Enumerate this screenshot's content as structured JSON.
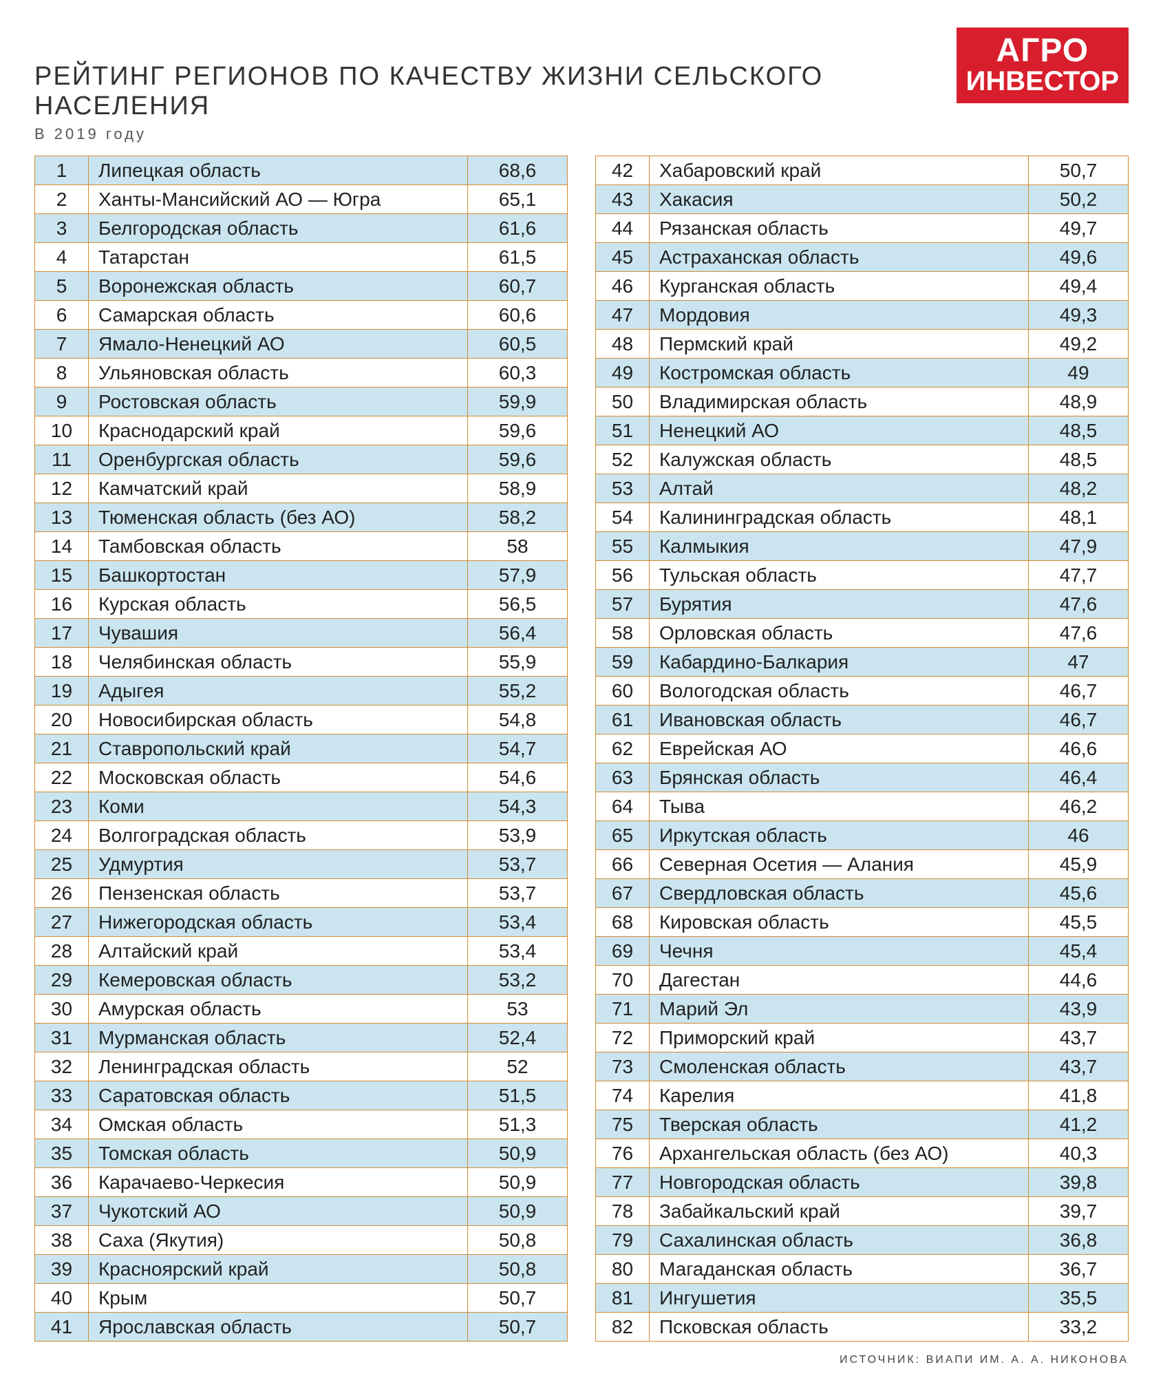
{
  "header": {
    "title": "РЕЙТИНГ РЕГИОНОВ ПО КАЧЕСТВУ ЖИЗНИ СЕЛЬСКОГО НАСЕЛЕНИЯ",
    "subtitle": "В 2019 году",
    "logo_line1": "АГРО",
    "logo_line2": "ИНВЕСТОР"
  },
  "source": "ИСТОЧНИК: ВИАПИ ИМ. А. А. НИКОНОВА",
  "style": {
    "row_odd_bg": "#cae5f0",
    "row_even_bg": "#ffffff",
    "border_color": "#d38b2f",
    "logo_bg": "#d81e2c",
    "logo_fg": "#ffffff",
    "font_size_cell": 28,
    "font_size_title": 38,
    "font_size_subtitle": 22
  },
  "rows": [
    {
      "rank": "1",
      "region": "Липецкая область",
      "value": "68,6"
    },
    {
      "rank": "2",
      "region": "Ханты-Мансийский АО — Югра",
      "value": "65,1"
    },
    {
      "rank": "3",
      "region": "Белгородская область",
      "value": "61,6"
    },
    {
      "rank": "4",
      "region": "Татарстан",
      "value": "61,5"
    },
    {
      "rank": "5",
      "region": "Воронежская область",
      "value": "60,7"
    },
    {
      "rank": "6",
      "region": "Самарская область",
      "value": "60,6"
    },
    {
      "rank": "7",
      "region": "Ямало-Ненецкий АО",
      "value": "60,5"
    },
    {
      "rank": "8",
      "region": "Ульяновская область",
      "value": "60,3"
    },
    {
      "rank": "9",
      "region": "Ростовская область",
      "value": "59,9"
    },
    {
      "rank": "10",
      "region": "Краснодарский край",
      "value": "59,6"
    },
    {
      "rank": "11",
      "region": "Оренбургская область",
      "value": "59,6"
    },
    {
      "rank": "12",
      "region": "Камчатский край",
      "value": "58,9"
    },
    {
      "rank": "13",
      "region": "Тюменская область (без АО)",
      "value": "58,2"
    },
    {
      "rank": "14",
      "region": "Тамбовская область",
      "value": "58"
    },
    {
      "rank": "15",
      "region": "Башкортостан",
      "value": "57,9"
    },
    {
      "rank": "16",
      "region": "Курская область",
      "value": "56,5"
    },
    {
      "rank": "17",
      "region": "Чувашия",
      "value": "56,4"
    },
    {
      "rank": "18",
      "region": "Челябинская область",
      "value": "55,9"
    },
    {
      "rank": "19",
      "region": "Адыгея",
      "value": "55,2"
    },
    {
      "rank": "20",
      "region": "Новосибирская область",
      "value": "54,8"
    },
    {
      "rank": "21",
      "region": "Ставропольский край",
      "value": "54,7"
    },
    {
      "rank": "22",
      "region": "Московская область",
      "value": "54,6"
    },
    {
      "rank": "23",
      "region": "Коми",
      "value": "54,3"
    },
    {
      "rank": "24",
      "region": "Волгоградская область",
      "value": "53,9"
    },
    {
      "rank": "25",
      "region": "Удмуртия",
      "value": "53,7"
    },
    {
      "rank": "26",
      "region": "Пензенская область",
      "value": "53,7"
    },
    {
      "rank": "27",
      "region": "Нижегородская область",
      "value": "53,4"
    },
    {
      "rank": "28",
      "region": "Алтайский край",
      "value": "53,4"
    },
    {
      "rank": "29",
      "region": "Кемеровская область",
      "value": "53,2"
    },
    {
      "rank": "30",
      "region": "Амурская область",
      "value": "53"
    },
    {
      "rank": "31",
      "region": "Мурманская область",
      "value": "52,4"
    },
    {
      "rank": "32",
      "region": "Ленинградская область",
      "value": "52"
    },
    {
      "rank": "33",
      "region": "Саратовская область",
      "value": "51,5"
    },
    {
      "rank": "34",
      "region": "Омская область",
      "value": "51,3"
    },
    {
      "rank": "35",
      "region": "Томская область",
      "value": "50,9"
    },
    {
      "rank": "36",
      "region": "Карачаево-Черкесия",
      "value": "50,9"
    },
    {
      "rank": "37",
      "region": "Чукотский АО",
      "value": "50,9"
    },
    {
      "rank": "38",
      "region": "Саха (Якутия)",
      "value": "50,8"
    },
    {
      "rank": "39",
      "region": "Красноярский край",
      "value": "50,8"
    },
    {
      "rank": "40",
      "region": "Крым",
      "value": "50,7"
    },
    {
      "rank": "41",
      "region": "Ярославская область",
      "value": "50,7"
    },
    {
      "rank": "42",
      "region": "Хабаровский край",
      "value": "50,7"
    },
    {
      "rank": "43",
      "region": "Хакасия",
      "value": "50,2"
    },
    {
      "rank": "44",
      "region": "Рязанская область",
      "value": "49,7"
    },
    {
      "rank": "45",
      "region": "Астраханская область",
      "value": "49,6"
    },
    {
      "rank": "46",
      "region": "Курганская область",
      "value": "49,4"
    },
    {
      "rank": "47",
      "region": "Мордовия",
      "value": "49,3"
    },
    {
      "rank": "48",
      "region": "Пермский край",
      "value": "49,2"
    },
    {
      "rank": "49",
      "region": "Костромская область",
      "value": "49"
    },
    {
      "rank": "50",
      "region": "Владимирская область",
      "value": "48,9"
    },
    {
      "rank": "51",
      "region": "Ненецкий АО",
      "value": "48,5"
    },
    {
      "rank": "52",
      "region": "Калужская область",
      "value": "48,5"
    },
    {
      "rank": "53",
      "region": "Алтай",
      "value": "48,2"
    },
    {
      "rank": "54",
      "region": "Калининградская область",
      "value": "48,1"
    },
    {
      "rank": "55",
      "region": "Калмыкия",
      "value": "47,9"
    },
    {
      "rank": "56",
      "region": "Тульская область",
      "value": "47,7"
    },
    {
      "rank": "57",
      "region": "Бурятия",
      "value": "47,6"
    },
    {
      "rank": "58",
      "region": "Орловская область",
      "value": "47,6"
    },
    {
      "rank": "59",
      "region": "Кабардино-Балкария",
      "value": "47"
    },
    {
      "rank": "60",
      "region": "Вологодская область",
      "value": "46,7"
    },
    {
      "rank": "61",
      "region": "Ивановская область",
      "value": "46,7"
    },
    {
      "rank": "62",
      "region": "Еврейская АО",
      "value": "46,6"
    },
    {
      "rank": "63",
      "region": "Брянская область",
      "value": "46,4"
    },
    {
      "rank": "64",
      "region": "Тыва",
      "value": "46,2"
    },
    {
      "rank": "65",
      "region": "Иркутская область",
      "value": "46"
    },
    {
      "rank": "66",
      "region": "Северная Осетия — Алания",
      "value": "45,9"
    },
    {
      "rank": "67",
      "region": "Свердловская область",
      "value": "45,6"
    },
    {
      "rank": "68",
      "region": "Кировская область",
      "value": "45,5"
    },
    {
      "rank": "69",
      "region": "Чечня",
      "value": "45,4"
    },
    {
      "rank": "70",
      "region": "Дагестан",
      "value": "44,6"
    },
    {
      "rank": "71",
      "region": "Марий Эл",
      "value": "43,9"
    },
    {
      "rank": "72",
      "region": "Приморский край",
      "value": "43,7"
    },
    {
      "rank": "73",
      "region": "Смоленская область",
      "value": "43,7"
    },
    {
      "rank": "74",
      "region": "Карелия",
      "value": "41,8"
    },
    {
      "rank": "75",
      "region": "Тверская область",
      "value": "41,2"
    },
    {
      "rank": "76",
      "region": "Архангельская область (без АО)",
      "value": "40,3"
    },
    {
      "rank": "77",
      "region": "Новгородская область",
      "value": "39,8"
    },
    {
      "rank": "78",
      "region": "Забайкальский край",
      "value": "39,7"
    },
    {
      "rank": "79",
      "region": "Сахалинская область",
      "value": "36,8"
    },
    {
      "rank": "80",
      "region": "Магаданская область",
      "value": "36,7"
    },
    {
      "rank": "81",
      "region": "Ингушетия",
      "value": "35,5"
    },
    {
      "rank": "82",
      "region": "Псковская область",
      "value": "33,2"
    }
  ]
}
